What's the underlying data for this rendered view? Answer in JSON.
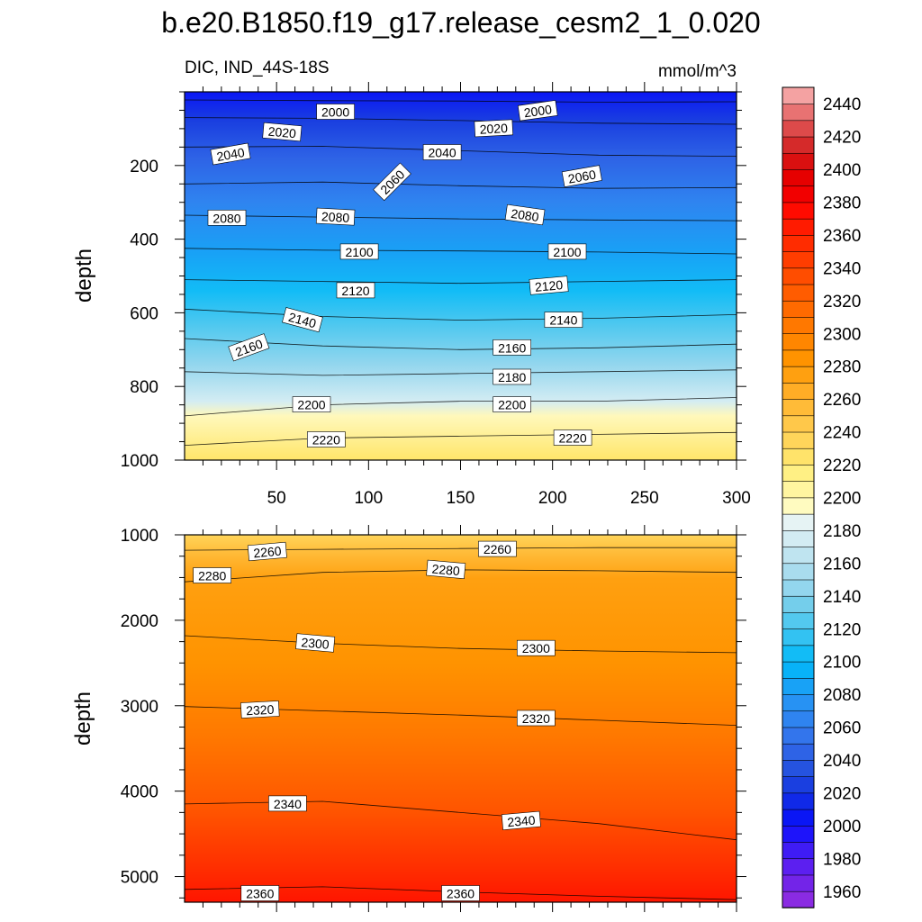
{
  "title": "b.e20.B1850.f19_g17.release_cesm2_1_0.020",
  "left_subtitle": "DIC, IND_44S-18S",
  "right_subtitle": "mmol/m^3",
  "chart_data": [
    {
      "type": "heatmap",
      "panel": "upper",
      "title": "DIC, IND_44S-18S",
      "units": "mmol/m^3",
      "xlabel": "",
      "ylabel": "depth",
      "xlim": [
        0,
        300
      ],
      "ylim": [
        1000,
        0
      ],
      "y_reversed": true,
      "x_ticks": [
        "50",
        "100",
        "150",
        "200",
        "250",
        "300"
      ],
      "y_ticks": [
        "200",
        "400",
        "600",
        "800",
        "1000"
      ],
      "contour_lines": [
        {
          "value": 2000,
          "depth": [
            22,
            24,
            25,
            28,
            27
          ]
        },
        {
          "value": 2020,
          "depth": [
            70,
            72,
            78,
            85,
            88
          ]
        },
        {
          "value": 2040,
          "depth": [
            150,
            148,
            160,
            172,
            175
          ]
        },
        {
          "value": 2060,
          "depth": [
            250,
            245,
            255,
            262,
            260
          ]
        },
        {
          "value": 2080,
          "depth": [
            335,
            340,
            345,
            348,
            350
          ]
        },
        {
          "value": 2100,
          "depth": [
            425,
            430,
            432,
            435,
            440
          ]
        },
        {
          "value": 2120,
          "depth": [
            510,
            515,
            520,
            515,
            510
          ]
        },
        {
          "value": 2140,
          "depth": [
            590,
            610,
            620,
            615,
            605
          ]
        },
        {
          "value": 2160,
          "depth": [
            670,
            690,
            700,
            695,
            685
          ]
        },
        {
          "value": 2180,
          "depth": [
            760,
            770,
            765,
            760,
            755
          ]
        },
        {
          "value": 2200,
          "depth": [
            880,
            850,
            840,
            840,
            830
          ]
        },
        {
          "value": 2220,
          "depth": [
            960,
            940,
            935,
            930,
            925
          ]
        }
      ],
      "contour_labels": [
        {
          "text": "2000",
          "x": 82,
          "depth": 55,
          "rot": 0
        },
        {
          "text": "2000",
          "x": 192,
          "depth": 52,
          "rot": -8
        },
        {
          "text": "2020",
          "x": 53,
          "depth": 110,
          "rot": 5
        },
        {
          "text": "2020",
          "x": 168,
          "depth": 100,
          "rot": -3
        },
        {
          "text": "2040",
          "x": 25,
          "depth": 170,
          "rot": -10
        },
        {
          "text": "2040",
          "x": 140,
          "depth": 165,
          "rot": 0
        },
        {
          "text": "2060",
          "x": 113,
          "depth": 245,
          "rot": -45
        },
        {
          "text": "2060",
          "x": 216,
          "depth": 230,
          "rot": -10
        },
        {
          "text": "2080",
          "x": 23,
          "depth": 343,
          "rot": 0
        },
        {
          "text": "2080",
          "x": 82,
          "depth": 340,
          "rot": 3
        },
        {
          "text": "2080",
          "x": 185,
          "depth": 335,
          "rot": 8
        },
        {
          "text": "2100",
          "x": 95,
          "depth": 435,
          "rot": 0
        },
        {
          "text": "2100",
          "x": 208,
          "depth": 435,
          "rot": 0
        },
        {
          "text": "2120",
          "x": 93,
          "depth": 540,
          "rot": 0
        },
        {
          "text": "2120",
          "x": 198,
          "depth": 527,
          "rot": -5
        },
        {
          "text": "2140",
          "x": 64,
          "depth": 620,
          "rot": 15
        },
        {
          "text": "2140",
          "x": 206,
          "depth": 620,
          "rot": 0
        },
        {
          "text": "2160",
          "x": 35,
          "depth": 695,
          "rot": -20
        },
        {
          "text": "2160",
          "x": 178,
          "depth": 695,
          "rot": 0
        },
        {
          "text": "2180",
          "x": 178,
          "depth": 775,
          "rot": 0
        },
        {
          "text": "2200",
          "x": 69,
          "depth": 850,
          "rot": 0
        },
        {
          "text": "2200",
          "x": 178,
          "depth": 850,
          "rot": 0
        },
        {
          "text": "2220",
          "x": 77,
          "depth": 945,
          "rot": 0
        },
        {
          "text": "2220",
          "x": 211,
          "depth": 940,
          "rot": 0
        }
      ]
    },
    {
      "type": "heatmap",
      "panel": "lower",
      "xlabel": "",
      "ylabel": "depth",
      "xlim": [
        0,
        300
      ],
      "ylim": [
        5300,
        1000
      ],
      "y_reversed": true,
      "y_ticks": [
        "1000",
        "2000",
        "3000",
        "4000",
        "5000"
      ],
      "contour_lines": [
        {
          "value": 2260,
          "depth": [
            1180,
            1170,
            1160,
            1150,
            1150
          ]
        },
        {
          "value": 2280,
          "depth": [
            1550,
            1440,
            1410,
            1420,
            1440
          ]
        },
        {
          "value": 2300,
          "depth": [
            2180,
            2270,
            2330,
            2360,
            2380
          ]
        },
        {
          "value": 2320,
          "depth": [
            3010,
            3060,
            3110,
            3170,
            3230
          ]
        },
        {
          "value": 2340,
          "depth": [
            4150,
            4120,
            4250,
            4380,
            4570
          ]
        },
        {
          "value": 2360,
          "depth": [
            5150,
            5120,
            5180,
            5230,
            5270
          ]
        }
      ],
      "contour_labels": [
        {
          "text": "2260",
          "x": 45,
          "depth": 1200,
          "rot": -5
        },
        {
          "text": "2260",
          "x": 170,
          "depth": 1170,
          "rot": 0
        },
        {
          "text": "2280",
          "x": 15,
          "depth": 1480,
          "rot": 0
        },
        {
          "text": "2280",
          "x": 142,
          "depth": 1410,
          "rot": 5
        },
        {
          "text": "2300",
          "x": 71,
          "depth": 2270,
          "rot": 5
        },
        {
          "text": "2300",
          "x": 191,
          "depth": 2330,
          "rot": 0
        },
        {
          "text": "2320",
          "x": 41,
          "depth": 3050,
          "rot": -3
        },
        {
          "text": "2320",
          "x": 191,
          "depth": 3150,
          "rot": 0
        },
        {
          "text": "2340",
          "x": 56,
          "depth": 4150,
          "rot": 0
        },
        {
          "text": "2340",
          "x": 183,
          "depth": 4350,
          "rot": -5
        },
        {
          "text": "2360",
          "x": 41,
          "depth": 5200,
          "rot": 0
        },
        {
          "text": "2360",
          "x": 150,
          "depth": 5200,
          "rot": 0
        }
      ]
    },
    {
      "type": "colorbar",
      "min": 1950,
      "max": 2450,
      "step": 10,
      "labels": [
        "2440",
        "2420",
        "2400",
        "2380",
        "2360",
        "2340",
        "2320",
        "2300",
        "2280",
        "2260",
        "2240",
        "2220",
        "2200",
        "2180",
        "2160",
        "2140",
        "2120",
        "2100",
        "2080",
        "2060",
        "2040",
        "2020",
        "2000",
        "1980",
        "1960"
      ],
      "colors": [
        "#8a2be2",
        "#7324e8",
        "#5c1ff0",
        "#3f1cf5",
        "#1e14fa",
        "#0a16f5",
        "#1029e8",
        "#1a3fe0",
        "#2553e0",
        "#2e63e6",
        "#3375ec",
        "#2f84f0",
        "#2792f3",
        "#18a2f6",
        "#08b2f8",
        "#12bcf6",
        "#33c2f2",
        "#53c9ef",
        "#74ceeb",
        "#93d6ee",
        "#a9dcee",
        "#bfe4f0",
        "#d3ecf3",
        "#e6f3f4",
        "#fffbc0",
        "#fff5a0",
        "#fff084",
        "#ffe36a",
        "#ffd55a",
        "#ffc84a",
        "#ffbb38",
        "#ffad26",
        "#ffa010",
        "#ff9300",
        "#ff8600",
        "#ff7800",
        "#ff6a00",
        "#ff5c00",
        "#ff4d00",
        "#ff3d00",
        "#ff2c00",
        "#ff1b00",
        "#ff0b00",
        "#f20000",
        "#e60000",
        "#da1010",
        "#d52a2a",
        "#dd4a4a",
        "#e87272",
        "#f4a2a2"
      ]
    }
  ]
}
